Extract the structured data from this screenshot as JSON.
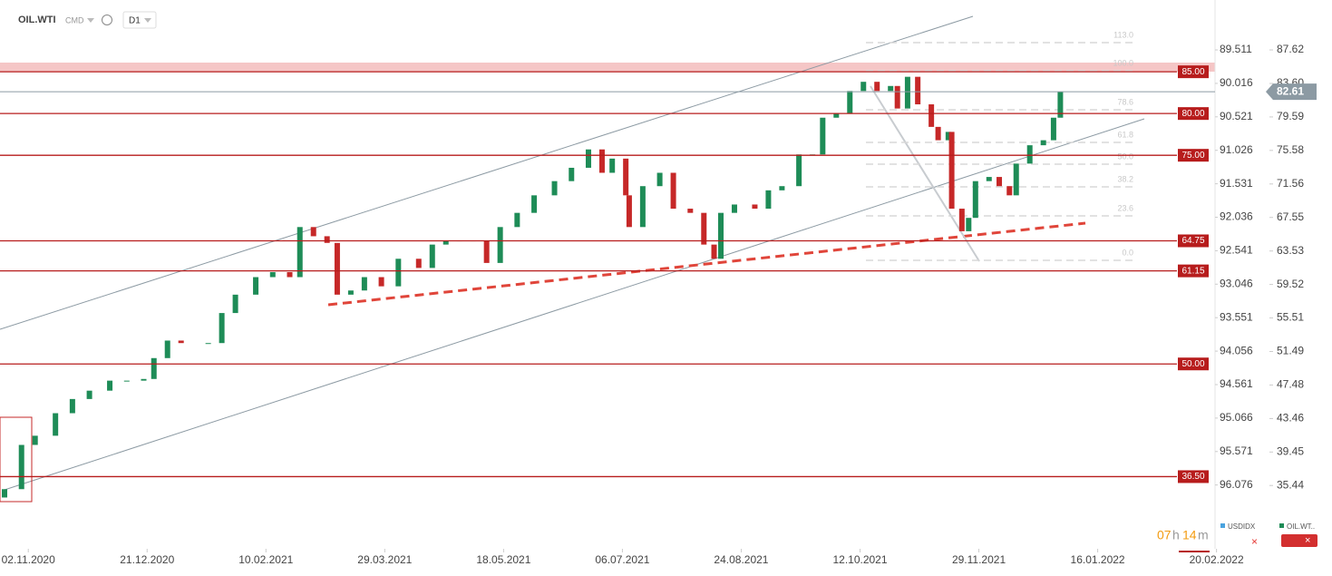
{
  "chart_data": {
    "type": "candlestick",
    "symbol": "OIL.WTI",
    "market": "CMD",
    "interval": "D1",
    "x": [
      0,
      5,
      9,
      15,
      20,
      25,
      31,
      36,
      41,
      44,
      48,
      52,
      60,
      64,
      68,
      74,
      79,
      84,
      87,
      91,
      95,
      98,
      102,
      106,
      111,
      116,
      122,
      126,
      130,
      134,
      138,
      142,
      146,
      151,
      156,
      162,
      167,
      172,
      176,
      179,
      183,
      184,
      188,
      193,
      197,
      202,
      206,
      209,
      211,
      215,
      221,
      225,
      229,
      234,
      238,
      241,
      245,
      249,
      253,
      257,
      261,
      263,
      266,
      269,
      273,
      275,
      278,
      279,
      282,
      284,
      286,
      290,
      293,
      296,
      298,
      302,
      306,
      309,
      311
    ],
    "open": [
      34.0,
      35.0,
      40.3,
      41.4,
      44.1,
      45.8,
      46.8,
      48.0,
      48.0,
      48.2,
      50.7,
      52.8,
      52.5,
      52.5,
      56.1,
      58.3,
      60.4,
      61.0,
      60.4,
      66.4,
      65.3,
      64.5,
      58.3,
      58.8,
      60.4,
      59.3,
      62.6,
      61.5,
      64.3,
      64.8,
      64.8,
      64.8,
      62.1,
      66.4,
      68.1,
      70.2,
      71.9,
      73.5,
      75.7,
      72.9,
      74.6,
      70.2,
      66.4,
      71.3,
      72.9,
      68.6,
      68.1,
      64.3,
      62.6,
      68.1,
      69.1,
      68.6,
      70.8,
      71.3,
      75.1,
      75.1,
      79.5,
      80.0,
      82.7,
      83.8,
      82.7,
      83.3,
      80.6,
      84.4,
      81.1,
      78.4,
      76.8,
      77.8,
      68.6,
      65.9,
      67.5,
      71.9,
      72.4,
      71.3,
      70.2,
      74.0,
      76.2,
      76.8,
      79.5
    ],
    "close": [
      35.0,
      40.3,
      41.4,
      44.1,
      45.8,
      46.8,
      48.0,
      48.0,
      48.2,
      50.7,
      52.8,
      52.5,
      52.5,
      56.1,
      58.3,
      60.4,
      61.0,
      60.4,
      66.4,
      65.3,
      64.5,
      58.3,
      58.8,
      60.4,
      59.3,
      62.6,
      61.5,
      64.3,
      64.8,
      64.8,
      64.8,
      62.1,
      66.4,
      68.1,
      70.2,
      71.9,
      73.5,
      75.7,
      72.9,
      74.6,
      70.2,
      66.4,
      71.3,
      72.9,
      68.6,
      68.1,
      64.3,
      62.6,
      68.1,
      69.1,
      68.6,
      70.8,
      71.3,
      75.1,
      75.1,
      79.5,
      80.0,
      82.7,
      83.8,
      82.7,
      83.3,
      80.6,
      84.4,
      81.1,
      78.4,
      76.8,
      77.8,
      68.6,
      65.9,
      67.5,
      71.9,
      72.4,
      71.3,
      70.2,
      74.0,
      76.2,
      76.8,
      79.5,
      82.61
    ],
    "up_color": "#1e8c57",
    "down_color": "#c62828",
    "xlim": [
      0,
      357.9
    ],
    "xticks": [
      {
        "value": 7,
        "label": "02.11.2020"
      },
      {
        "value": 42,
        "label": "21.12.2020"
      },
      {
        "value": 77,
        "label": "10.02.2021"
      },
      {
        "value": 112,
        "label": "29.03.2021"
      },
      {
        "value": 147,
        "label": "18.05.2021"
      },
      {
        "value": 182,
        "label": "06.07.2021"
      },
      {
        "value": 217,
        "label": "24.08.2021"
      },
      {
        "value": 252,
        "label": "12.10.2021"
      },
      {
        "value": 287,
        "label": "29.11.2021"
      },
      {
        "value": 322,
        "label": "16.01.2022"
      },
      {
        "value": 357,
        "label": "20.02.2022"
      }
    ],
    "ylim": [
      28.4,
      93.6
    ],
    "yticks": [
      87.62,
      {
        "value": 83.6,
        "label": "83.60"
      },
      79.59,
      75.58,
      71.56,
      67.55,
      63.53,
      59.52,
      55.51,
      51.49,
      47.48,
      43.46,
      39.45,
      35.44
    ],
    "y2lim": [
      96.97,
      88.758
    ],
    "y2ticks": [
      89.511,
      90.016,
      90.521,
      91.026,
      91.531,
      92.036,
      92.541,
      93.046,
      93.551,
      94.056,
      94.561,
      95.066,
      95.571,
      96.076
    ],
    "levels": {
      "values": [
        85,
        80,
        75,
        64.75,
        61.15,
        50,
        36.5
      ],
      "value_labels": [
        "85.00",
        "80.00",
        "75.00",
        "64.75",
        "61.15",
        "50.00",
        "36.50"
      ],
      "color": "#b71c1c"
    },
    "last_price": 82.61,
    "fib_labels": [
      "113.0",
      "100.0",
      "78.6",
      "61.8",
      "50.0",
      "38.2",
      "23.6",
      "0.0"
    ],
    "countdown": [
      "07",
      "h",
      "14",
      "m"
    ],
    "legend": [
      "USDIDX",
      "OIL.WT.."
    ]
  }
}
